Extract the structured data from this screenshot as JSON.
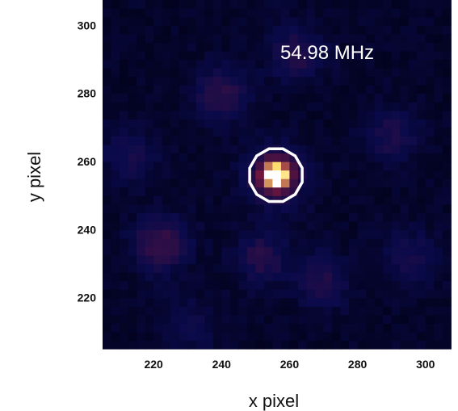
{
  "chart_data": {
    "type": "heatmap",
    "title": "",
    "annotation": "54.98 MHz",
    "xlabel": "x pixel",
    "ylabel": "y pixel",
    "xlim": [
      205,
      306
    ],
    "ylim": [
      205,
      306
    ],
    "xticks": [
      220,
      240,
      260,
      280,
      300
    ],
    "yticks": [
      220,
      240,
      260,
      280,
      300
    ],
    "colormap": {
      "low": "#000010",
      "mid_low": "#0a0a4a",
      "mid": "#8a1a3a",
      "high": "#ffe070",
      "peak": "#ffffff"
    },
    "source": {
      "x": 256,
      "y": 256,
      "peak": 1.0
    },
    "contour": {
      "center_x": 256,
      "center_y": 256,
      "radius": 8,
      "color": "#ffffff"
    },
    "background_blobs": [
      {
        "x": 222,
        "y": 236,
        "intensity": 0.22
      },
      {
        "x": 240,
        "y": 280,
        "intensity": 0.18
      },
      {
        "x": 262,
        "y": 292,
        "intensity": 0.16
      },
      {
        "x": 290,
        "y": 268,
        "intensity": 0.14
      },
      {
        "x": 252,
        "y": 232,
        "intensity": 0.16
      },
      {
        "x": 295,
        "y": 232,
        "intensity": 0.12
      },
      {
        "x": 213,
        "y": 262,
        "intensity": 0.12
      },
      {
        "x": 270,
        "y": 225,
        "intensity": 0.14
      },
      {
        "x": 230,
        "y": 212,
        "intensity": 0.1
      }
    ]
  }
}
